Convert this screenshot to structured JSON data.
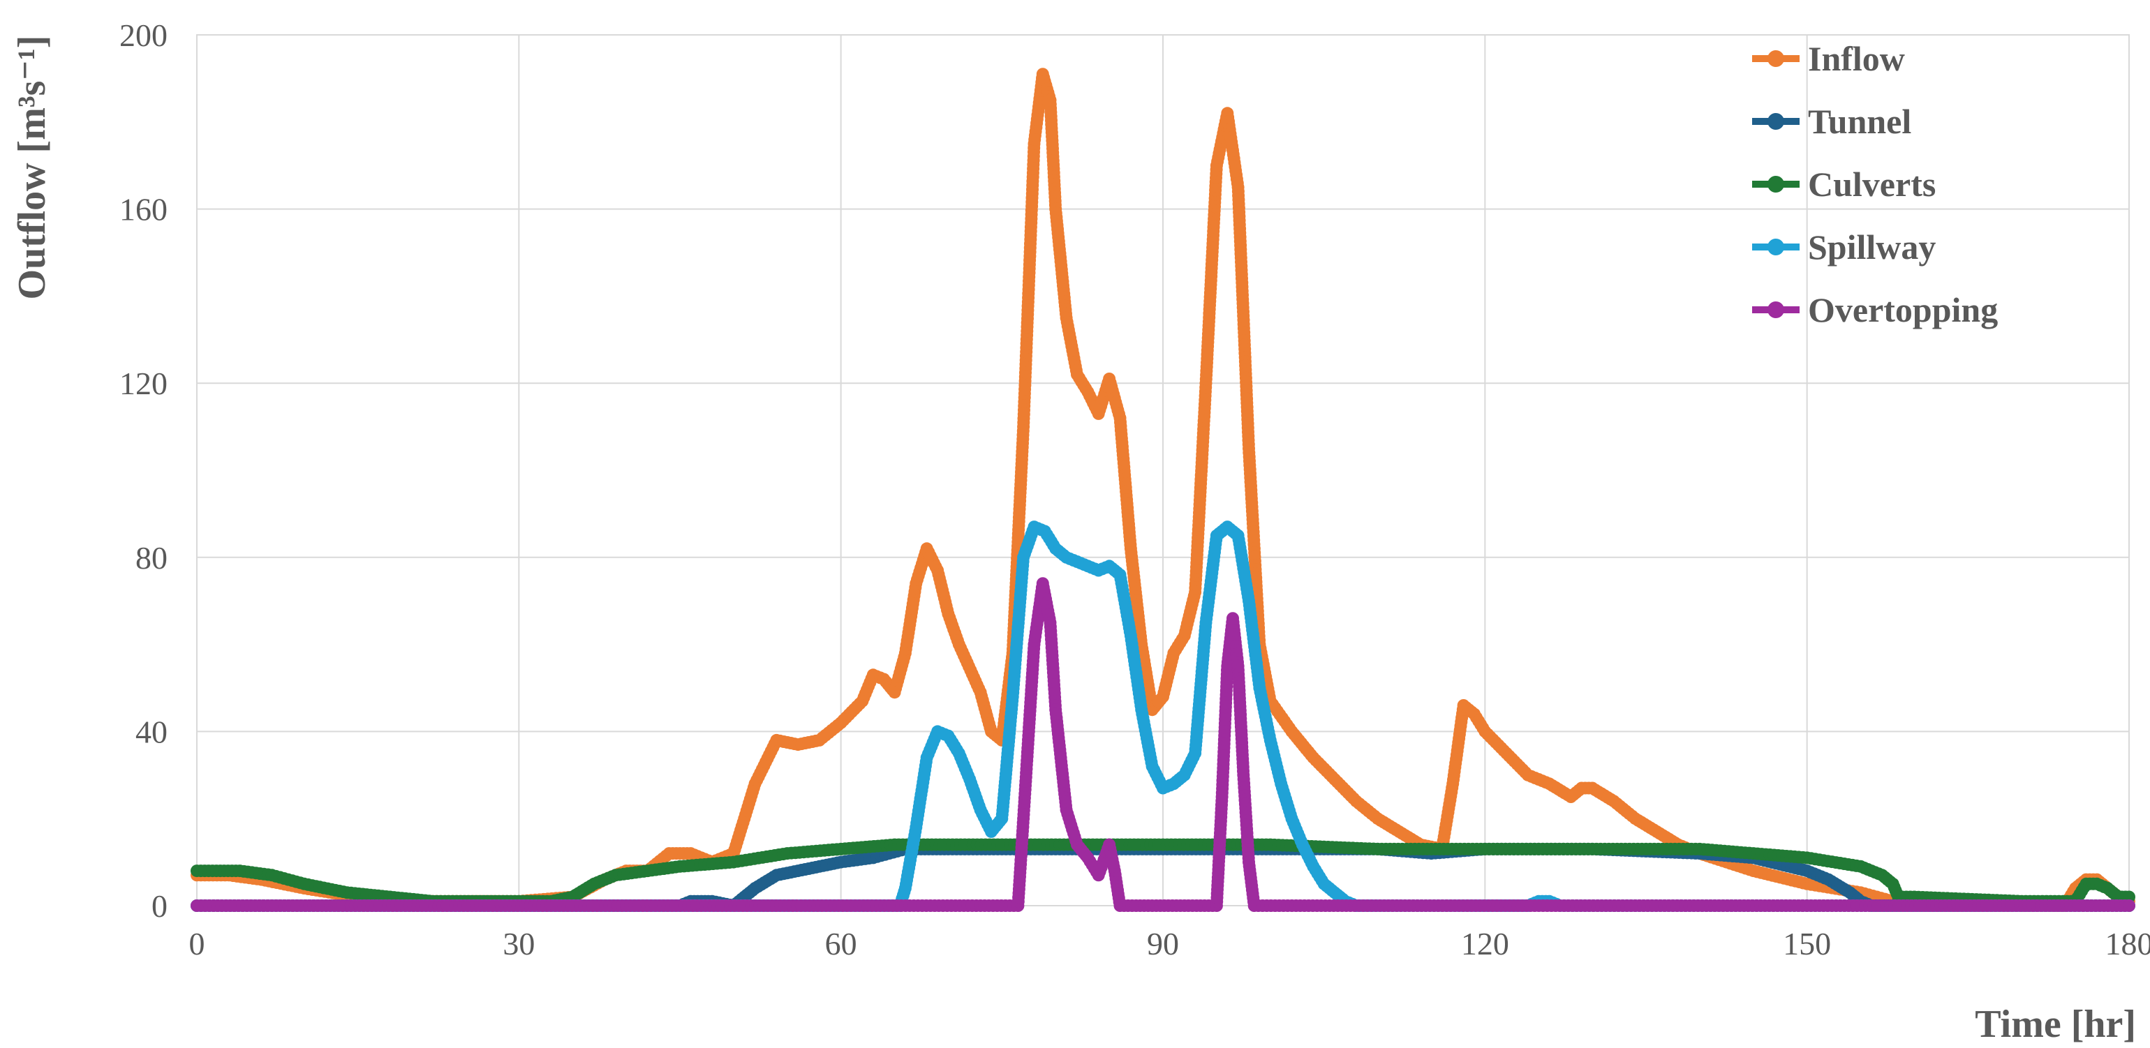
{
  "chart_data": {
    "type": "line",
    "xlabel": "Time [hr]",
    "ylabel": "Outflow [m³s⁻¹]",
    "xlim": [
      0,
      180
    ],
    "ylim": [
      0,
      200
    ],
    "x_ticks": [
      "0",
      "30",
      "60",
      "90",
      "120",
      "150",
      "180"
    ],
    "y_ticks": [
      "0",
      "40",
      "80",
      "120",
      "160",
      "200"
    ],
    "grid": true,
    "legend_position": "top-right",
    "series": [
      {
        "name": "Inflow",
        "color": "#ED7D31",
        "points": [
          [
            0,
            7
          ],
          [
            3,
            7
          ],
          [
            6,
            6
          ],
          [
            10,
            4
          ],
          [
            15,
            2
          ],
          [
            20,
            1
          ],
          [
            25,
            1
          ],
          [
            30,
            1
          ],
          [
            35,
            2
          ],
          [
            38,
            6
          ],
          [
            40,
            8
          ],
          [
            42,
            8
          ],
          [
            44,
            12
          ],
          [
            46,
            12
          ],
          [
            48,
            10
          ],
          [
            50,
            12
          ],
          [
            52,
            28
          ],
          [
            54,
            38
          ],
          [
            56,
            37
          ],
          [
            58,
            38
          ],
          [
            60,
            42
          ],
          [
            62,
            47
          ],
          [
            63,
            53
          ],
          [
            64,
            52
          ],
          [
            65,
            49
          ],
          [
            66,
            58
          ],
          [
            67,
            74
          ],
          [
            68,
            82
          ],
          [
            69,
            77
          ],
          [
            70,
            67
          ],
          [
            71,
            60
          ],
          [
            73,
            49
          ],
          [
            74,
            40
          ],
          [
            75,
            38
          ],
          [
            76,
            58
          ],
          [
            77,
            110
          ],
          [
            78,
            175
          ],
          [
            78.8,
            191
          ],
          [
            79.5,
            185
          ],
          [
            80,
            160
          ],
          [
            81,
            135
          ],
          [
            82,
            122
          ],
          [
            83,
            118
          ],
          [
            84,
            113
          ],
          [
            85,
            121
          ],
          [
            86,
            112
          ],
          [
            87,
            82
          ],
          [
            88,
            60
          ],
          [
            89,
            45
          ],
          [
            90,
            48
          ],
          [
            91,
            58
          ],
          [
            92,
            62
          ],
          [
            93,
            72
          ],
          [
            94,
            120
          ],
          [
            95,
            170
          ],
          [
            96,
            182
          ],
          [
            97,
            165
          ],
          [
            98,
            105
          ],
          [
            99,
            60
          ],
          [
            100,
            47
          ],
          [
            102,
            40
          ],
          [
            104,
            34
          ],
          [
            106,
            29
          ],
          [
            108,
            24
          ],
          [
            110,
            20
          ],
          [
            112,
            17
          ],
          [
            114,
            14
          ],
          [
            116,
            13
          ],
          [
            117,
            28
          ],
          [
            118,
            46
          ],
          [
            119,
            44
          ],
          [
            120,
            40
          ],
          [
            122,
            35
          ],
          [
            124,
            30
          ],
          [
            126,
            28
          ],
          [
            128,
            25
          ],
          [
            129,
            27
          ],
          [
            130,
            27
          ],
          [
            132,
            24
          ],
          [
            134,
            20
          ],
          [
            136,
            17
          ],
          [
            138,
            14
          ],
          [
            140,
            12
          ],
          [
            145,
            8
          ],
          [
            150,
            5
          ],
          [
            155,
            3
          ],
          [
            158,
            1
          ],
          [
            165,
            1
          ],
          [
            170,
            0
          ],
          [
            174,
            0
          ],
          [
            175,
            4
          ],
          [
            176,
            6
          ],
          [
            177,
            6
          ],
          [
            178,
            4
          ],
          [
            179,
            2
          ],
          [
            180,
            1
          ]
        ]
      },
      {
        "name": "Tunnel",
        "color": "#1F5F8B",
        "points": [
          [
            0,
            0
          ],
          [
            45,
            0
          ],
          [
            46,
            1
          ],
          [
            48,
            1
          ],
          [
            50,
            0
          ],
          [
            51,
            2
          ],
          [
            52,
            4
          ],
          [
            54,
            7
          ],
          [
            56,
            8
          ],
          [
            58,
            9
          ],
          [
            60,
            10
          ],
          [
            63,
            11
          ],
          [
            66,
            13
          ],
          [
            70,
            13
          ],
          [
            80,
            13
          ],
          [
            90,
            13
          ],
          [
            100,
            13
          ],
          [
            110,
            13
          ],
          [
            115,
            12
          ],
          [
            120,
            13
          ],
          [
            130,
            13
          ],
          [
            140,
            12
          ],
          [
            145,
            11
          ],
          [
            150,
            8
          ],
          [
            152,
            6
          ],
          [
            154,
            3
          ],
          [
            155,
            1
          ],
          [
            156,
            0
          ],
          [
            180,
            0
          ]
        ]
      },
      {
        "name": "Culverts",
        "color": "#217A35",
        "points": [
          [
            0,
            8
          ],
          [
            4,
            8
          ],
          [
            7,
            7
          ],
          [
            10,
            5
          ],
          [
            14,
            3
          ],
          [
            18,
            2
          ],
          [
            22,
            1
          ],
          [
            26,
            1
          ],
          [
            30,
            1
          ],
          [
            33,
            1
          ],
          [
            35,
            2
          ],
          [
            37,
            5
          ],
          [
            39,
            7
          ],
          [
            42,
            8
          ],
          [
            45,
            9
          ],
          [
            50,
            10
          ],
          [
            55,
            12
          ],
          [
            60,
            13
          ],
          [
            65,
            14
          ],
          [
            70,
            14
          ],
          [
            75,
            14
          ],
          [
            80,
            14
          ],
          [
            85,
            14
          ],
          [
            90,
            14
          ],
          [
            95,
            14
          ],
          [
            100,
            14
          ],
          [
            110,
            13
          ],
          [
            120,
            13
          ],
          [
            130,
            13
          ],
          [
            140,
            13
          ],
          [
            150,
            11
          ],
          [
            155,
            9
          ],
          [
            157,
            7
          ],
          [
            158,
            5
          ],
          [
            158.5,
            2
          ],
          [
            160,
            2
          ],
          [
            170,
            1
          ],
          [
            175,
            1
          ],
          [
            176,
            5
          ],
          [
            177,
            5
          ],
          [
            178,
            4
          ],
          [
            179,
            2
          ],
          [
            180,
            2
          ]
        ]
      },
      {
        "name": "Spillway",
        "color": "#20A2D6",
        "points": [
          [
            0,
            0
          ],
          [
            65.5,
            0
          ],
          [
            66,
            4
          ],
          [
            67,
            18
          ],
          [
            68,
            34
          ],
          [
            69,
            40
          ],
          [
            70,
            39
          ],
          [
            71,
            35
          ],
          [
            72,
            29
          ],
          [
            73,
            22
          ],
          [
            74,
            17
          ],
          [
            75,
            20
          ],
          [
            76,
            48
          ],
          [
            77,
            80
          ],
          [
            78,
            87
          ],
          [
            79,
            86
          ],
          [
            80,
            82
          ],
          [
            81,
            80
          ],
          [
            82,
            79
          ],
          [
            83,
            78
          ],
          [
            84,
            77
          ],
          [
            85,
            78
          ],
          [
            86,
            76
          ],
          [
            87,
            62
          ],
          [
            88,
            45
          ],
          [
            89,
            32
          ],
          [
            90,
            27
          ],
          [
            91,
            28
          ],
          [
            92,
            30
          ],
          [
            93,
            35
          ],
          [
            94,
            65
          ],
          [
            95,
            85
          ],
          [
            96,
            87
          ],
          [
            97,
            85
          ],
          [
            98,
            70
          ],
          [
            99,
            50
          ],
          [
            100,
            38
          ],
          [
            101,
            28
          ],
          [
            102,
            20
          ],
          [
            103,
            14
          ],
          [
            104,
            9
          ],
          [
            105,
            5
          ],
          [
            106,
            3
          ],
          [
            107,
            1
          ],
          [
            108,
            0
          ],
          [
            124,
            0
          ],
          [
            125,
            1
          ],
          [
            126,
            1
          ],
          [
            127,
            0
          ],
          [
            180,
            0
          ]
        ]
      },
      {
        "name": "Overtopping",
        "color": "#9E2B9E",
        "points": [
          [
            0,
            0
          ],
          [
            76.5,
            0
          ],
          [
            77,
            20
          ],
          [
            78,
            60
          ],
          [
            78.8,
            74
          ],
          [
            79.5,
            65
          ],
          [
            80,
            45
          ],
          [
            81,
            22
          ],
          [
            82,
            14
          ],
          [
            83,
            11
          ],
          [
            84,
            7
          ],
          [
            85,
            14
          ],
          [
            85.5,
            8
          ],
          [
            86,
            0
          ],
          [
            95,
            0
          ],
          [
            95.5,
            25
          ],
          [
            96,
            55
          ],
          [
            96.5,
            66
          ],
          [
            97,
            55
          ],
          [
            97.5,
            30
          ],
          [
            98,
            10
          ],
          [
            98.5,
            0
          ],
          [
            180,
            0
          ]
        ]
      }
    ]
  }
}
